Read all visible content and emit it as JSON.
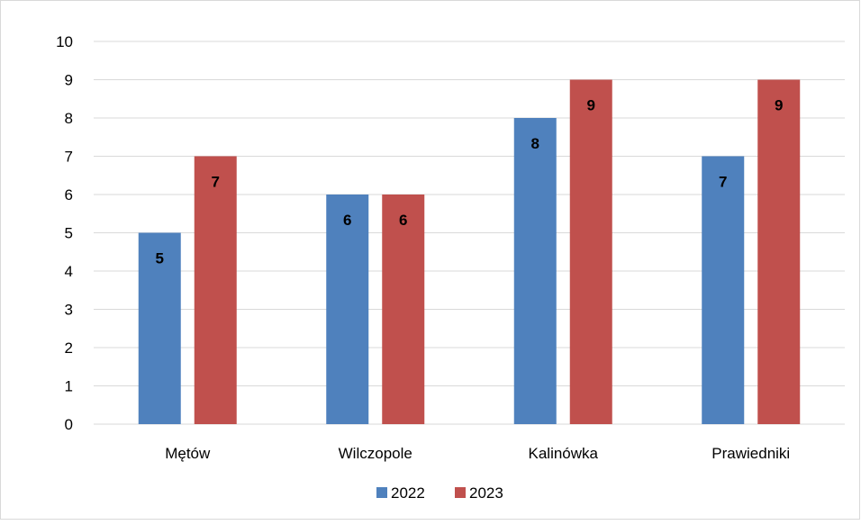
{
  "chart_data": {
    "type": "bar",
    "categories": [
      "Mętów",
      "Wilczopole",
      "Kalinówka",
      "Prawiedniki"
    ],
    "series": [
      {
        "name": "2022",
        "values": [
          5,
          6,
          8,
          7
        ],
        "color": "#4F81BD"
      },
      {
        "name": "2023",
        "values": [
          7,
          6,
          9,
          9
        ],
        "color": "#C0504D"
      }
    ],
    "title": "",
    "xlabel": "",
    "ylabel": "",
    "ylim": [
      0,
      10
    ],
    "yticks": [
      0,
      1,
      2,
      3,
      4,
      5,
      6,
      7,
      8,
      9,
      10
    ],
    "grid": true,
    "legend_position": "bottom",
    "data_labels": true
  }
}
